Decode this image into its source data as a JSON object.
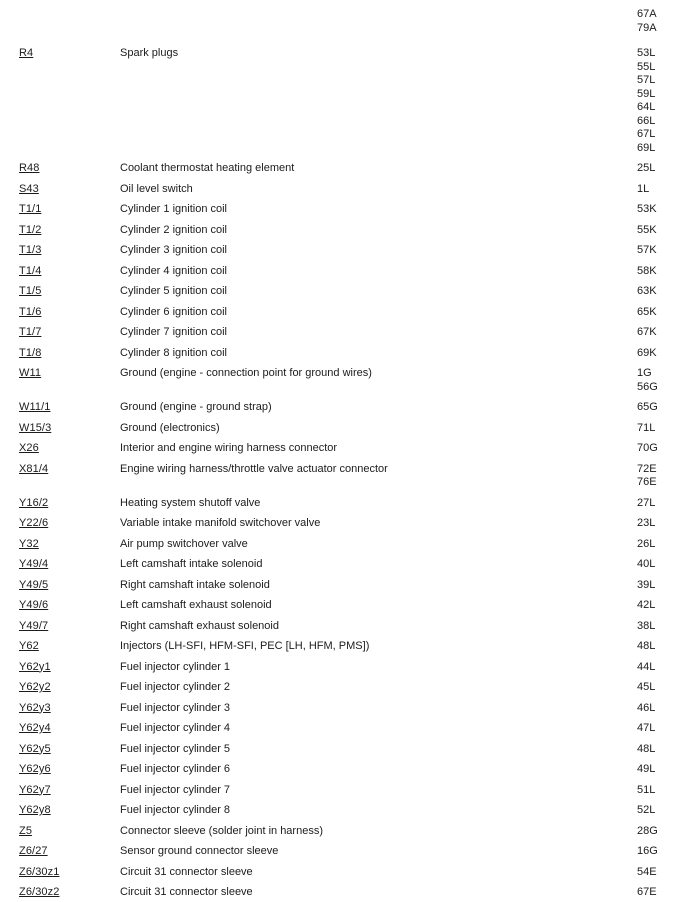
{
  "page": {
    "background": "#ffffff",
    "text_color": "#1c1c1c"
  },
  "legend": {
    "continuation": {
      "locations": [
        "67A",
        "79A"
      ]
    },
    "entries": [
      {
        "code": "R4",
        "description": "Spark plugs",
        "locations": [
          "53L",
          "55L",
          "57L",
          "59L",
          "64L",
          "66L",
          "67L",
          "69L"
        ]
      },
      {
        "code": "R48",
        "description": "Coolant thermostat heating element",
        "locations": [
          "25L"
        ]
      },
      {
        "code": "S43",
        "description": "Oil level switch",
        "locations": [
          "1L"
        ]
      },
      {
        "code": "T1/1",
        "description": "Cylinder 1 ignition coil",
        "locations": [
          "53K"
        ]
      },
      {
        "code": "T1/2",
        "description": "Cylinder 2 ignition coil",
        "locations": [
          "55K"
        ]
      },
      {
        "code": "T1/3",
        "description": "Cylinder 3 ignition coil",
        "locations": [
          "57K"
        ]
      },
      {
        "code": "T1/4",
        "description": "Cylinder 4 ignition coil",
        "locations": [
          "58K"
        ]
      },
      {
        "code": "T1/5",
        "description": "Cylinder 5 ignition coil",
        "locations": [
          "63K"
        ]
      },
      {
        "code": "T1/6",
        "description": "Cylinder 6 ignition coil",
        "locations": [
          "65K"
        ]
      },
      {
        "code": "T1/7",
        "description": "Cylinder 7 ignition coil",
        "locations": [
          "67K"
        ]
      },
      {
        "code": "T1/8",
        "description": "Cylinder 8 ignition coil",
        "locations": [
          "69K"
        ]
      },
      {
        "code": "W11",
        "description": "Ground (engine - connection point for ground wires)",
        "locations": [
          "1G",
          "56G"
        ]
      },
      {
        "code": "W11/1",
        "description": "Ground (engine - ground strap)",
        "locations": [
          "65G"
        ]
      },
      {
        "code": "W15/3",
        "description": "Ground (electronics)",
        "locations": [
          "71L"
        ]
      },
      {
        "code": "X26",
        "description": "Interior and engine wiring harness connector",
        "locations": [
          "70G"
        ]
      },
      {
        "code": "X81/4",
        "description": "Engine wiring harness/throttle valve actuator connector",
        "locations": [
          "72E",
          "76E"
        ]
      },
      {
        "code": "Y16/2",
        "description": "Heating system shutoff valve",
        "locations": [
          "27L"
        ]
      },
      {
        "code": "Y22/6",
        "description": "Variable intake manifold switchover valve",
        "locations": [
          "23L"
        ]
      },
      {
        "code": "Y32",
        "description": "Air pump switchover valve",
        "locations": [
          "26L"
        ]
      },
      {
        "code": "Y49/4",
        "description": "Left camshaft intake solenoid",
        "locations": [
          "40L"
        ]
      },
      {
        "code": "Y49/5",
        "description": "Right camshaft intake solenoid",
        "locations": [
          "39L"
        ]
      },
      {
        "code": "Y49/6",
        "description": "Left camshaft exhaust solenoid",
        "locations": [
          "42L"
        ]
      },
      {
        "code": "Y49/7",
        "description": "Right camshaft exhaust solenoid",
        "locations": [
          "38L"
        ]
      },
      {
        "code": "Y62",
        "description": "Injectors (LH-SFI, HFM-SFI, PEC [LH, HFM, PMS])",
        "locations": [
          "48L"
        ]
      },
      {
        "code": "Y62y1",
        "description": "Fuel injector cylinder 1",
        "locations": [
          "44L"
        ]
      },
      {
        "code": "Y62y2",
        "description": "Fuel injector cylinder 2",
        "locations": [
          "45L"
        ]
      },
      {
        "code": "Y62y3",
        "description": "Fuel injector cylinder 3",
        "locations": [
          "46L"
        ]
      },
      {
        "code": "Y62y4",
        "description": "Fuel injector cylinder 4",
        "locations": [
          "47L"
        ]
      },
      {
        "code": "Y62y5",
        "description": "Fuel injector cylinder 5",
        "locations": [
          "48L"
        ]
      },
      {
        "code": "Y62y6",
        "description": "Fuel injector cylinder 6",
        "locations": [
          "49L"
        ]
      },
      {
        "code": "Y62y7",
        "description": "Fuel injector cylinder 7",
        "locations": [
          "51L"
        ]
      },
      {
        "code": "Y62y8",
        "description": "Fuel injector cylinder 8",
        "locations": [
          "52L"
        ]
      },
      {
        "code": "Z5",
        "description": "Connector sleeve (solder joint in harness)",
        "locations": [
          "28G"
        ]
      },
      {
        "code": "Z6/27",
        "description": "Sensor ground connector sleeve",
        "locations": [
          "16G"
        ]
      },
      {
        "code": "Z6/30z1",
        "description": "Circuit 31 connector sleeve",
        "locations": [
          "54E"
        ]
      },
      {
        "code": "Z6/30z2",
        "description": "Circuit 31 connector sleeve",
        "locations": [
          "67E"
        ]
      }
    ]
  }
}
